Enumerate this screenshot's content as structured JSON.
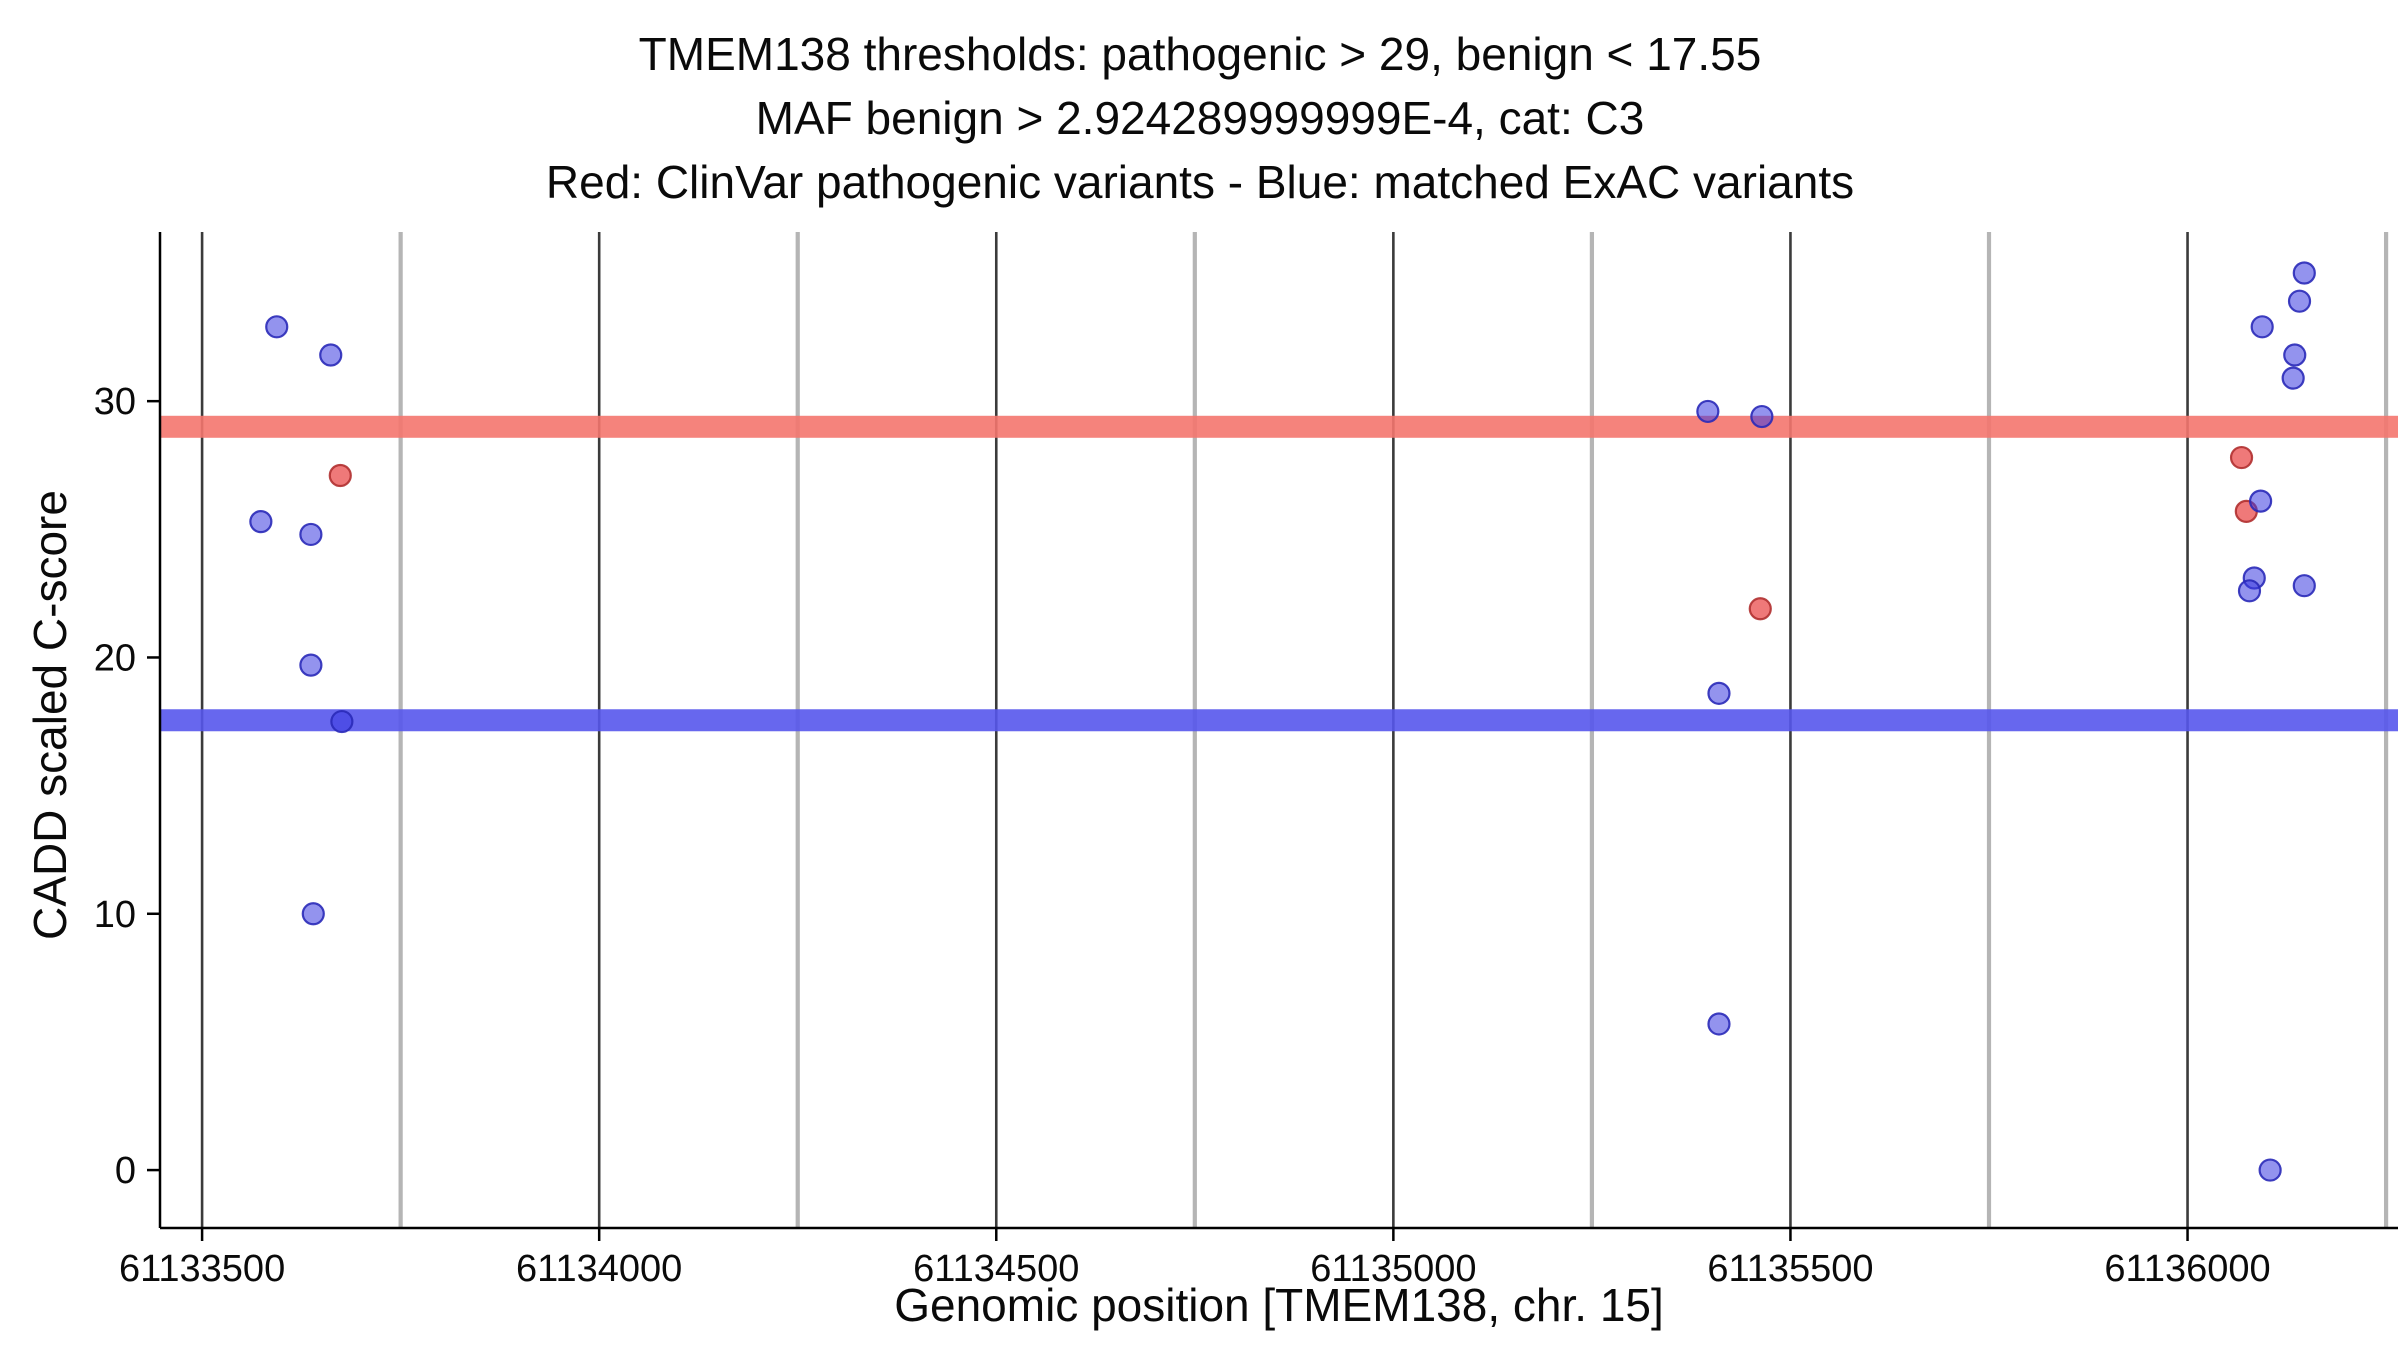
{
  "chart_data": {
    "type": "scatter",
    "title_lines": [
      "TMEM138 thresholds: pathogenic > 29, benign < 17.55",
      "MAF benign > 2.924289999999E-4, cat: C3",
      "Red: ClinVar pathogenic variants - Blue: matched ExAC variants"
    ],
    "xlabel": "Genomic position [TMEM138, chr. 15]",
    "ylabel": "CADD scaled C-score",
    "xlim": [
      61133447,
      61136265
    ],
    "ylim": [
      -2.26,
      36.6
    ],
    "xticks": [
      61133500,
      61134000,
      61134500,
      61135000,
      61135500,
      61136000
    ],
    "xticks_minor": [
      61133750,
      61134250,
      61134750,
      61135250,
      61135750,
      61136250
    ],
    "yticks": [
      0,
      10,
      20,
      30
    ],
    "grid": "vertical gridlines only, no horizontal gridlines",
    "legend_position": "described in title line 3",
    "thresholds": [
      {
        "name": "pathogenic",
        "label": "pathogenic > 29",
        "y": 29,
        "color": "#F4756E",
        "opacity": 0.9
      },
      {
        "name": "benign",
        "label": "benign < 17.55",
        "y": 17.55,
        "color": "#5757EC",
        "opacity": 0.9
      }
    ],
    "series": [
      {
        "name": "ClinVar pathogenic variants",
        "color_word": "Red",
        "fill": "#E84040",
        "fill_opacity": 0.7,
        "stroke": "#B03030",
        "point_name": "clinvar-pathogenic-point",
        "points": [
          [
            61133674,
            27.1
          ],
          [
            61135462,
            21.9
          ],
          [
            61136068,
            27.8
          ],
          [
            61136074,
            25.7
          ]
        ]
      },
      {
        "name": "matched ExAC variants",
        "color_word": "Blue",
        "fill": "#3A3AE0",
        "fill_opacity": 0.55,
        "stroke": "#2A2AB8",
        "point_name": "exac-variant-point",
        "points": [
          [
            61133594,
            32.9
          ],
          [
            61133662,
            31.8
          ],
          [
            61133574,
            25.3
          ],
          [
            61133637,
            24.8
          ],
          [
            61133637,
            19.7
          ],
          [
            61133676,
            17.5
          ],
          [
            61133640,
            10.0
          ],
          [
            61135396,
            29.6
          ],
          [
            61135464,
            29.4
          ],
          [
            61135410,
            18.6
          ],
          [
            61135410,
            5.7
          ],
          [
            61136104,
            0.0
          ],
          [
            61136094,
            32.9
          ],
          [
            61136147,
            35.0
          ],
          [
            61136141,
            33.9
          ],
          [
            61136135,
            31.8
          ],
          [
            61136133,
            30.9
          ],
          [
            61136092,
            26.1
          ],
          [
            61136084,
            23.1
          ],
          [
            61136078,
            22.6
          ],
          [
            61136147,
            22.8
          ]
        ]
      }
    ],
    "colors": {
      "grid_major": "#3b3b3b",
      "grid_minor": "#b5b5b5",
      "axis": "#000000",
      "text": "#0a0a0a",
      "background": "#ffffff"
    }
  }
}
